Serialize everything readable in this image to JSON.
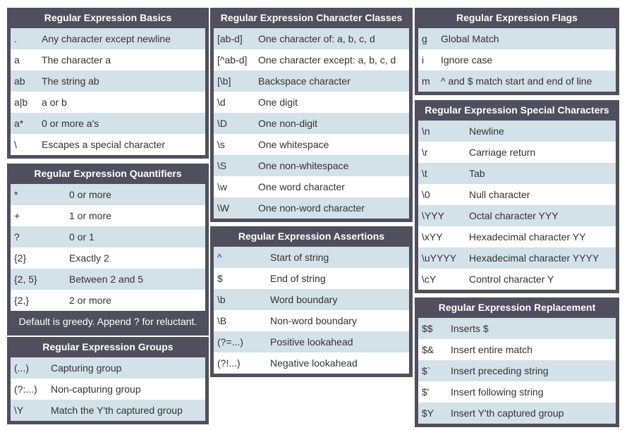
{
  "tables": [
    {
      "title": "Regular Expression Basics",
      "rows": [
        [
          ".",
          "Any character except newline"
        ],
        [
          "a",
          "The character a"
        ],
        [
          "ab",
          "The string ab"
        ],
        [
          "a|b",
          "a or b"
        ],
        [
          "a*",
          "0 or more a's"
        ],
        [
          "\\",
          "Escapes a special character"
        ]
      ]
    },
    {
      "title": "Regular Expression Quantifiers",
      "rows": [
        [
          "*",
          "0 or more"
        ],
        [
          "+",
          "1 or more"
        ],
        [
          "?",
          "0 or 1"
        ],
        [
          "{2}",
          "Exactly 2"
        ],
        [
          "{2, 5}",
          "Between 2 and 5"
        ],
        [
          "{2,}",
          "2 or more"
        ]
      ],
      "note": "Default is greedy. Append ? for reluctant."
    },
    {
      "title": "Regular Expression Groups",
      "rows": [
        [
          "(...)",
          "Capturing group"
        ],
        [
          "(?:...)",
          "Non-capturing group"
        ],
        [
          "\\Y",
          "Match the Y'th captured group"
        ]
      ]
    },
    {
      "title": "Regular Expression Character Classes",
      "rows": [
        [
          "[ab-d]",
          "One character of: a, b, c, d"
        ],
        [
          "[^ab-d]",
          "One character except: a, b, c, d"
        ],
        [
          "[\\b]",
          "Backspace character"
        ],
        [
          "\\d",
          "One digit"
        ],
        [
          "\\D",
          "One non-digit"
        ],
        [
          "\\s",
          "One whitespace"
        ],
        [
          "\\S",
          "One non-whitespace"
        ],
        [
          "\\w",
          "One word character"
        ],
        [
          "\\W",
          "One non-word character"
        ]
      ]
    },
    {
      "title": "Regular Expression Assertions",
      "rows": [
        [
          "^",
          "Start of string"
        ],
        [
          "$",
          "End of string"
        ],
        [
          "\\b",
          "Word boundary"
        ],
        [
          "\\B",
          "Non-word boundary"
        ],
        [
          "(?=...)",
          "Positive lookahead"
        ],
        [
          "(?!...)",
          "Negative lookahead"
        ]
      ]
    },
    {
      "title": "Regular Expression Flags",
      "rows": [
        [
          "g",
          "Global Match"
        ],
        [
          "i",
          "Ignore case"
        ],
        [
          "m",
          "^ and $ match start and end of line"
        ]
      ]
    },
    {
      "title": "Regular Expression Special Characters",
      "rows": [
        [
          "\\n",
          "Newline"
        ],
        [
          "\\r",
          "Carriage return"
        ],
        [
          "\\t",
          "Tab"
        ],
        [
          "\\0",
          "Null character"
        ],
        [
          "\\YYY",
          "Octal character YYY"
        ],
        [
          "\\xYY",
          "Hexadecimal character YY"
        ],
        [
          "\\uYYYY",
          "Hexadecimal character YYYY"
        ],
        [
          "\\cY",
          "Control character Y"
        ]
      ]
    },
    {
      "title": "Regular Expression Replacement",
      "rows": [
        [
          "$$",
          "Inserts $"
        ],
        [
          "$&",
          "Insert entire match"
        ],
        [
          "$`",
          "Insert preceding string"
        ],
        [
          "$'",
          "Insert following string"
        ],
        [
          "$Y",
          "Insert Y'th captured group"
        ]
      ]
    }
  ]
}
